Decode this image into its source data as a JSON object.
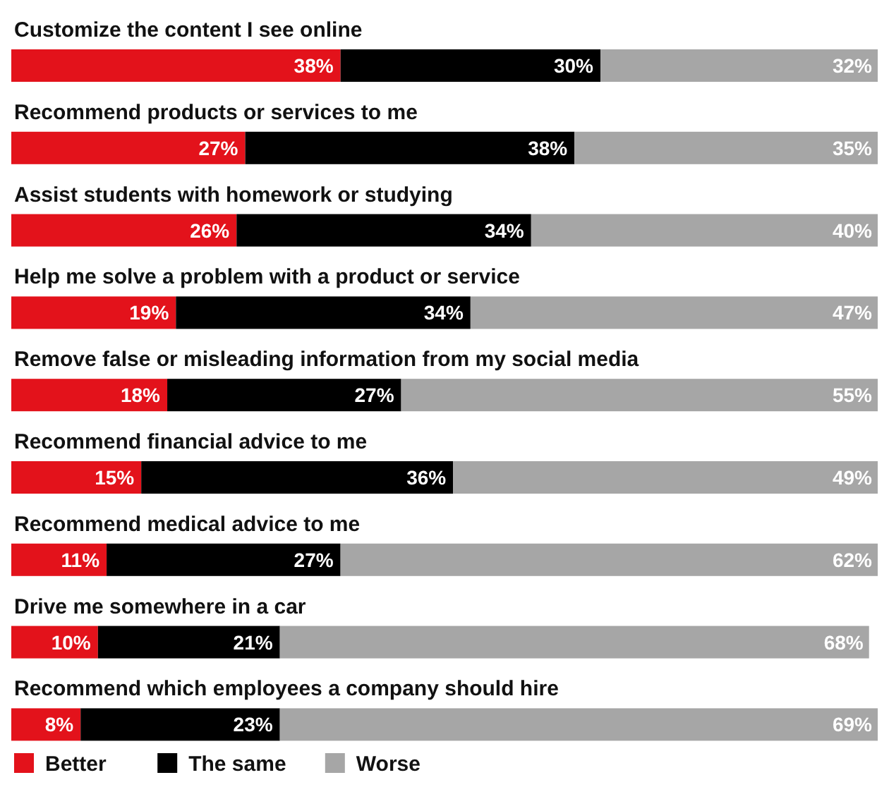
{
  "chart_data": {
    "type": "bar",
    "orientation": "horizontal",
    "stacked": true,
    "data_labels": true,
    "legend": "bottom",
    "categories": [
      "Customize the content I see online",
      "Recommend products or services to me",
      "Assist students with homework or studying",
      "Help me solve a problem with a product or service",
      "Remove false or misleading information from my social media",
      "Recommend financial advice to me",
      "Recommend medical advice to me",
      "Drive me somewhere in a car",
      "Recommend which employees a company should hire"
    ],
    "series": [
      {
        "name": "Better",
        "color": "#e3121b",
        "values": [
          38,
          27,
          26,
          19,
          18,
          15,
          11,
          10,
          8
        ],
        "value_labels": [
          "38%",
          "27%",
          "26%",
          "19%",
          "18%",
          "15%",
          "11%",
          "10%",
          "8%"
        ]
      },
      {
        "name": "The same",
        "color": "#000000",
        "values": [
          30,
          38,
          34,
          34,
          27,
          36,
          27,
          21,
          23
        ],
        "value_labels": [
          "30%",
          "38%",
          "34%",
          "34%",
          "27%",
          "36%",
          "27%",
          "21%",
          "23%"
        ]
      },
      {
        "name": "Worse",
        "color": "#a6a6a6",
        "values": [
          32,
          35,
          40,
          47,
          55,
          49,
          62,
          68,
          69
        ],
        "value_labels": [
          "32%",
          "35%",
          "40%",
          "47%",
          "55%",
          "49%",
          "62%",
          "68%",
          "69%"
        ]
      }
    ]
  }
}
